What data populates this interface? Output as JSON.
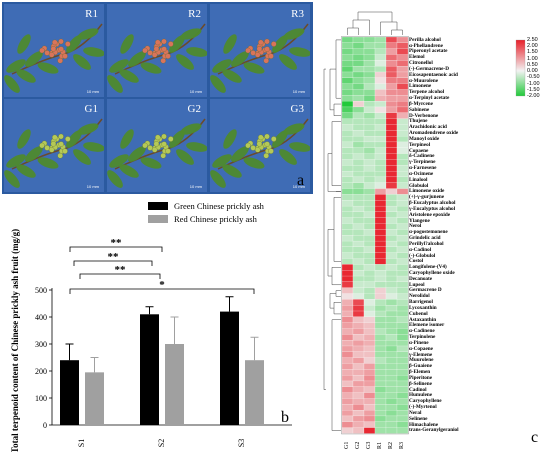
{
  "panel_a": {
    "letter": "a",
    "photos": [
      {
        "label": "R1",
        "scale": "10 mm",
        "variety": "red"
      },
      {
        "label": "R2",
        "scale": "10 mm",
        "variety": "red"
      },
      {
        "label": "R3",
        "scale": "10 mm",
        "variety": "red"
      },
      {
        "label": "G1",
        "scale": "10 mm",
        "variety": "green"
      },
      {
        "label": "G2",
        "scale": "10 mm",
        "variety": "green"
      },
      {
        "label": "G3",
        "scale": "10 mm",
        "variety": "green"
      }
    ],
    "colors": {
      "background": "#2b5aa0",
      "leaf": "#4e8a2e",
      "green_fruit": "#b5c957",
      "red_fruit": "#d9745a"
    }
  },
  "panel_b": {
    "letter": "b",
    "chart_data": {
      "type": "bar",
      "categories": [
        "S1",
        "S2",
        "S3"
      ],
      "series": [
        {
          "name": "Green Chinese prickly ash",
          "color": "#000000",
          "values": [
            240,
            410,
            420
          ],
          "errors": [
            60,
            28,
            55
          ]
        },
        {
          "name": "Red Chinese prickly ash",
          "color": "#a0a0a0",
          "values": [
            195,
            300,
            240
          ],
          "errors": [
            55,
            100,
            85
          ]
        }
      ],
      "ylabel": "Total terpenoid content of Chinese prickly ash fruit (mg/g)",
      "ylim": [
        0,
        500
      ],
      "yticks": [
        "0",
        "100",
        "200",
        "300",
        "400",
        "500"
      ],
      "legend_position": "top-right",
      "significance": [
        {
          "from": "S1",
          "to": "S2",
          "label": "**"
        },
        {
          "from": "S1",
          "to": "S2",
          "label": "**"
        },
        {
          "from": "S1",
          "to": "S2",
          "label": "**"
        },
        {
          "from": "S1",
          "to": "S3",
          "label": "*"
        }
      ]
    }
  },
  "panel_c": {
    "letter": "c",
    "columns": [
      "G1",
      "G2",
      "G3",
      "R1",
      "R2",
      "R3"
    ],
    "colorbar": {
      "ticks": [
        "2.50",
        "2.00",
        "1.50",
        "1.00",
        "0.50",
        "0.00",
        "-0.50",
        "-1.00",
        "-1.50",
        "-2.00"
      ],
      "high_color": "#e8202a",
      "mid_color": "#f2f2f2",
      "low_color": "#22c93a"
    },
    "rows": [
      "Perilla alcohol",
      "α-Phellandrene",
      "Piperonyl acetate",
      "Elemol",
      "Citronellol",
      "(-)-Germacrene-D",
      "Eicosapentaenoic acid",
      "α-Muurolene",
      "Limonene",
      "Terpene alcohol",
      "α-Terpinyl acetate",
      "β-Myrcene",
      "Sabinene",
      "D-Verbenone",
      "Thujene",
      "Arachidonic acid",
      "Aromadendrene oxide",
      "Manoyl oxide",
      "Terpineol",
      "Copaene",
      "δ-Cadinene",
      "γ-Terpinene",
      "α-Farnesene",
      "α-Ocimene",
      "Linalool",
      "Globulol",
      "Limonene oxide",
      "(+)-γ-gurjunene",
      "β-Eucalyptus alcohol",
      "γ-Eucalyptus alcohol",
      "Aristolene epoxide",
      "Ylangene",
      "Nerol",
      "α-pogostemonene",
      "Grindelic acid",
      "Perillyl?alcohol",
      "α-Cadinol",
      "(-)-Globulol",
      "Costol",
      "Longifolene-(V4)",
      "Caryophyllene oxide",
      "Decanoate",
      "Lupeol",
      "Germacrene D",
      "Nerolidol",
      "Barrigenol",
      "Lycoxanthin",
      "Cubenol",
      "Astaxanthin",
      "Elemene isomer",
      "α-Cadinene",
      "Terpinolene",
      "α-Pinene",
      "α-Copaene",
      "γ-Elemene",
      "Muurolene",
      "β-Guaiene",
      "β-Elemen",
      "Piperitone",
      "β-Selinene",
      "Cadinol",
      "Humulene",
      "Caryophyllene",
      "(-)-Myrtenol",
      "Neral",
      "Selinene",
      "Himachalene",
      "trans-Geranylgeraniol"
    ],
    "values": [
      [
        -1.2,
        -1.0,
        -1.0,
        -0.8,
        2.0,
        1.2
      ],
      [
        -1.0,
        -1.2,
        -0.8,
        -0.8,
        1.4,
        1.8
      ],
      [
        -1.2,
        -1.0,
        -1.0,
        -0.6,
        1.0,
        2.0
      ],
      [
        -1.0,
        -1.2,
        -1.0,
        -0.4,
        1.6,
        1.2
      ],
      [
        -1.2,
        -1.2,
        -0.8,
        -0.2,
        1.2,
        1.6
      ],
      [
        -1.4,
        -0.8,
        -0.8,
        -0.6,
        1.8,
        1.0
      ],
      [
        -1.0,
        -1.2,
        -1.0,
        0.4,
        1.8,
        1.0
      ],
      [
        -1.4,
        -1.0,
        -0.8,
        0.2,
        1.4,
        1.4
      ],
      [
        -1.0,
        -1.2,
        -0.6,
        -0.2,
        1.0,
        2.0
      ],
      [
        -1.2,
        -1.0,
        -1.0,
        0.6,
        1.2,
        1.2
      ],
      [
        -1.0,
        -0.8,
        -1.2,
        0.8,
        1.0,
        1.0
      ],
      [
        -2.0,
        0.4,
        -0.6,
        -0.4,
        1.2,
        1.4
      ],
      [
        -1.6,
        -1.0,
        -0.4,
        0.2,
        1.0,
        1.6
      ],
      [
        -1.2,
        -0.6,
        -0.8,
        -0.4,
        2.2,
        0.8
      ],
      [
        -0.6,
        -0.6,
        -0.6,
        -0.6,
        2.4,
        -0.4
      ],
      [
        -0.4,
        -0.6,
        -0.6,
        -0.4,
        2.4,
        -0.4
      ],
      [
        -0.6,
        -0.4,
        -0.6,
        -0.6,
        2.4,
        -0.4
      ],
      [
        -0.6,
        -0.6,
        -0.4,
        -0.4,
        2.4,
        -0.6
      ],
      [
        -0.4,
        -0.8,
        -0.6,
        -0.6,
        2.4,
        -0.2
      ],
      [
        -0.6,
        -0.6,
        -0.8,
        -0.4,
        2.4,
        -0.2
      ],
      [
        -0.6,
        -0.4,
        -0.6,
        -0.4,
        2.4,
        -0.6
      ],
      [
        -0.4,
        -0.6,
        -0.4,
        -0.6,
        2.4,
        -0.6
      ],
      [
        -0.6,
        -0.6,
        -0.4,
        -0.6,
        2.4,
        -0.4
      ],
      [
        -0.4,
        -0.6,
        -0.6,
        -0.6,
        2.4,
        -0.4
      ],
      [
        -0.6,
        -0.4,
        -0.6,
        -0.4,
        2.4,
        -0.6
      ],
      [
        -0.6,
        -0.8,
        -0.4,
        -0.2,
        2.2,
        -0.4
      ],
      [
        -1.0,
        -1.0,
        -0.8,
        1.0,
        0.4,
        1.2
      ],
      [
        -0.6,
        -0.6,
        -0.6,
        2.4,
        -0.6,
        -0.4
      ],
      [
        -0.4,
        -0.6,
        -0.6,
        2.4,
        -0.6,
        -0.4
      ],
      [
        -0.6,
        -0.4,
        -0.6,
        2.4,
        -0.4,
        -0.6
      ],
      [
        -0.6,
        -0.6,
        -0.4,
        2.4,
        -0.6,
        -0.4
      ],
      [
        -0.4,
        -0.6,
        -0.6,
        2.4,
        -0.4,
        -0.6
      ],
      [
        -0.6,
        -0.4,
        -0.6,
        2.4,
        -0.6,
        -0.4
      ],
      [
        -0.6,
        -0.6,
        -0.4,
        2.4,
        -0.4,
        -0.6
      ],
      [
        -0.4,
        -0.6,
        -0.6,
        2.4,
        -0.6,
        -0.4
      ],
      [
        -0.6,
        -0.4,
        -0.6,
        2.4,
        -0.4,
        -0.6
      ],
      [
        -0.6,
        -0.6,
        -0.4,
        2.4,
        -0.6,
        -0.4
      ],
      [
        -0.4,
        -0.6,
        -0.6,
        2.4,
        -0.4,
        -0.6
      ],
      [
        -0.6,
        -0.4,
        -0.6,
        2.4,
        -0.6,
        -0.4
      ],
      [
        2.4,
        -0.6,
        -0.4,
        -0.6,
        -0.4,
        -0.6
      ],
      [
        2.4,
        -0.4,
        -0.6,
        -0.4,
        -0.6,
        -0.6
      ],
      [
        2.4,
        -0.6,
        -0.6,
        -0.4,
        -0.6,
        -0.4
      ],
      [
        2.2,
        -0.4,
        -0.4,
        -0.6,
        -0.6,
        -0.6
      ],
      [
        0.6,
        -0.4,
        -0.6,
        0.4,
        -0.4,
        -0.6
      ],
      [
        0.2,
        -0.2,
        -0.6,
        0.4,
        -0.2,
        -0.4
      ],
      [
        0.8,
        2.0,
        -0.2,
        -0.6,
        -0.8,
        -0.6
      ],
      [
        1.0,
        2.2,
        -0.4,
        -0.8,
        -0.6,
        -0.8
      ],
      [
        0.8,
        2.2,
        -0.2,
        -0.6,
        -0.8,
        -0.8
      ],
      [
        1.2,
        0.6,
        0.4,
        -0.8,
        -0.8,
        -0.6
      ],
      [
        1.0,
        0.8,
        0.6,
        -0.8,
        -0.8,
        -0.8
      ],
      [
        0.8,
        1.0,
        0.6,
        -0.6,
        -0.8,
        -1.0
      ],
      [
        1.2,
        0.6,
        0.8,
        -0.8,
        -0.6,
        -1.0
      ],
      [
        0.8,
        1.0,
        0.8,
        -0.8,
        -0.8,
        -0.8
      ],
      [
        1.0,
        0.8,
        0.6,
        -0.8,
        -1.0,
        -0.6
      ],
      [
        1.2,
        0.6,
        0.6,
        -0.8,
        -0.8,
        -0.8
      ],
      [
        0.8,
        1.0,
        0.4,
        -0.6,
        -0.8,
        -0.8
      ],
      [
        1.0,
        0.6,
        1.0,
        -0.8,
        -0.8,
        -0.8
      ],
      [
        0.8,
        0.8,
        1.0,
        -0.8,
        -0.8,
        -0.8
      ],
      [
        1.0,
        0.6,
        1.2,
        -0.8,
        -0.8,
        -1.0
      ],
      [
        0.6,
        1.0,
        1.0,
        -0.8,
        -0.8,
        -0.8
      ],
      [
        1.2,
        0.8,
        0.6,
        -1.0,
        -0.8,
        -0.8
      ],
      [
        0.8,
        0.6,
        1.2,
        -0.8,
        -0.8,
        -1.0
      ],
      [
        1.0,
        0.8,
        0.8,
        -0.8,
        -1.0,
        -0.8
      ],
      [
        0.8,
        1.2,
        0.6,
        -0.8,
        -0.8,
        -1.0
      ],
      [
        1.0,
        0.6,
        1.0,
        -0.8,
        -1.0,
        -0.8
      ],
      [
        0.6,
        1.0,
        1.2,
        -1.0,
        -0.8,
        -0.8
      ],
      [
        1.2,
        0.8,
        0.6,
        -0.8,
        -0.8,
        -1.0
      ],
      [
        0.4,
        0.6,
        2.4,
        -0.8,
        -0.8,
        -0.8
      ]
    ]
  }
}
